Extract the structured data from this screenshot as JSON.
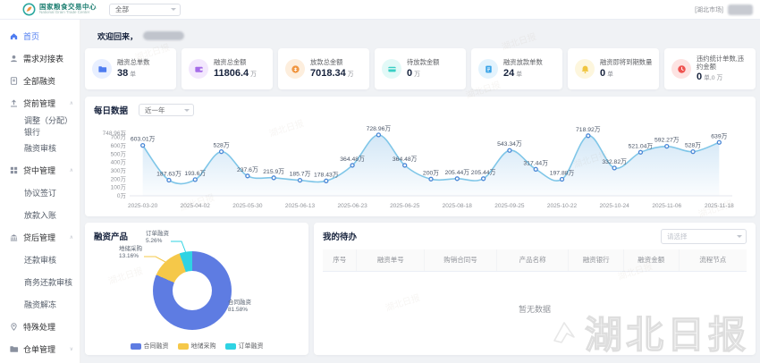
{
  "header": {
    "brand": {
      "title": "国家粮食交易中心",
      "subtitle": "National Grain Trade Center"
    },
    "market_select_value": "全部",
    "region_badge": "[湖北市场]"
  },
  "sidebar": {
    "items": [
      {
        "label": "首页",
        "icon": "home",
        "active": true
      },
      {
        "label": "需求对接表",
        "icon": "user"
      },
      {
        "label": "全部融资",
        "icon": "doc"
      },
      {
        "label": "贷前管理",
        "icon": "upload",
        "expand": "up"
      },
      {
        "label": "调整（分配）银行",
        "sub": true
      },
      {
        "label": "融资审核",
        "sub": true
      },
      {
        "label": "贷中管理",
        "icon": "grid",
        "expand": "up"
      },
      {
        "label": "协议签订",
        "sub": true
      },
      {
        "label": "放款入账",
        "sub": true
      },
      {
        "label": "贷后管理",
        "icon": "bank",
        "expand": "up"
      },
      {
        "label": "还款审核",
        "sub": true
      },
      {
        "label": "商务还款审核",
        "sub": true
      },
      {
        "label": "融资解冻",
        "sub": true
      },
      {
        "label": "特殊处理",
        "icon": "pin"
      },
      {
        "label": "仓单管理",
        "icon": "folder",
        "expand": "down"
      }
    ]
  },
  "welcome": {
    "text": "欢迎回来，"
  },
  "stats": [
    {
      "label": "融资总单数",
      "value": "38",
      "unit": "单",
      "icon": "folder",
      "fg": "#4e7cf0",
      "bg": "#e8efff"
    },
    {
      "label": "融资总金额",
      "value": "11806.4",
      "unit": "万",
      "icon": "wallet",
      "fg": "#a66ce8",
      "bg": "#f3e8fd"
    },
    {
      "label": "放款总金额",
      "value": "7018.34",
      "unit": "万",
      "icon": "coin",
      "fg": "#f0953f",
      "bg": "#fdeedd"
    },
    {
      "label": "待放款金额",
      "value": "0",
      "unit": "万",
      "icon": "card",
      "fg": "#38cfc4",
      "bg": "#e2f9f7"
    },
    {
      "label": "融资放款单数",
      "value": "24",
      "unit": "单",
      "icon": "doc2",
      "fg": "#3aa4e8",
      "bg": "#e3f3fd"
    },
    {
      "label": "融资即将到期数量",
      "value": "0",
      "unit": "单",
      "icon": "bell",
      "fg": "#f0c53f",
      "bg": "#fdf6dd"
    },
    {
      "label": "违约统计单数,违约金额",
      "value": "0",
      "unit": "单,0 万",
      "icon": "clock",
      "fg": "#ef5350",
      "bg": "#fde3e2"
    }
  ],
  "daily_chart": {
    "title": "每日数据",
    "range_select": "近一年",
    "chart_data": {
      "type": "line",
      "x": [
        "2025-03-20",
        "",
        "2025-04-02",
        "",
        "2025-05-30",
        "",
        "2025-06-13",
        "",
        "2025-06-23",
        "",
        "2025-06-25",
        "",
        "2025-08-18",
        "",
        "2025-09-25",
        "",
        "2025-10-22",
        "",
        "2025-10-24",
        "",
        "2025-11-06",
        "",
        "2025-11-18"
      ],
      "values": [
        603.01,
        187.63,
        193.6,
        528,
        237.6,
        215.9,
        185.7,
        178.43,
        364.48,
        728.96,
        364.48,
        200,
        205.44,
        205.44,
        543.34,
        317.44,
        197.88,
        718.92,
        332.82,
        521.04,
        592.27,
        528,
        639
      ],
      "point_labels": [
        "603.01万",
        "187.63万",
        "193.6万",
        "528万",
        "237.6万",
        "215.9万",
        "185.7万",
        "178.43万",
        "364.48万",
        "728.96万",
        "364.48万",
        "200万",
        "205.44万",
        "205.44万",
        "543.34万",
        "317.44万",
        "197.88万",
        "718.92万",
        "332.82万",
        "521.04万",
        "592.27万",
        "528万",
        "639万"
      ],
      "y_ticks": [
        0,
        100,
        200,
        300,
        400,
        500,
        600,
        700,
        748.96
      ],
      "y_tick_labels": [
        "0万",
        "100万",
        "200万",
        "300万",
        "400万",
        "500万",
        "600万",
        "700万",
        "748.96万"
      ],
      "y_max": 748.96,
      "ylabel": "",
      "xlabel": "",
      "line_color": "#7fc6e8",
      "point_color": "#4a87d6",
      "area_color": "#9cc9ec"
    }
  },
  "products": {
    "title": "融资产品",
    "chart_data": {
      "type": "pie",
      "slices": [
        {
          "name": "合同融资",
          "pct": 81.58,
          "color": "#5E7CE2"
        },
        {
          "name": "地储采购",
          "pct": 13.16,
          "color": "#F5C849"
        },
        {
          "name": "订单融资",
          "pct": 5.26,
          "color": "#2FD3E3"
        }
      ],
      "legend_position": "bottom"
    }
  },
  "todos": {
    "title": "我的待办",
    "select_placeholder": "请选择",
    "columns": [
      "序号",
      "融资单号",
      "购销合同号",
      "产品名称",
      "融资银行",
      "融资金额",
      "流程节点"
    ],
    "empty_text": "暂无数据"
  },
  "watermark": {
    "big_text": "湖北日报",
    "diagonal_text": "湖北日报"
  }
}
